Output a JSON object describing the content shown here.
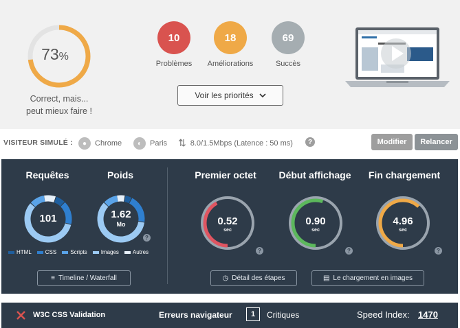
{
  "summary": {
    "score_value": "73",
    "score_unit": "%",
    "score_fraction": 0.73,
    "verdict_line1": "Correct, mais...",
    "verdict_line2": "peut mieux faire !",
    "colors": {
      "score": "#efa947",
      "problems": "#d9534f",
      "improvements": "#efa947",
      "success": "#a5adb1"
    },
    "problems_count": "10",
    "problems_label": "Problèmes",
    "improvements_count": "18",
    "improvements_label": "Améliorations",
    "success_count": "69",
    "success_label": "Succès",
    "priorities_button": "Voir les priorités"
  },
  "visitor": {
    "label": "VISITEUR SIMULÉ :",
    "browser": "Chrome",
    "location": "Paris",
    "bandwidth": "8.0/1.5Mbps (Latence : 50 ms)",
    "modify_button": "Modifier",
    "rerun_button": "Relancer"
  },
  "metrics": {
    "requests_title": "Requêtes",
    "requests_value": "101",
    "weight_title": "Poids",
    "weight_value": "1.62",
    "weight_unit": "Mo",
    "legend": [
      {
        "label": "HTML",
        "color": "#1f5f9e"
      },
      {
        "label": "CSS",
        "color": "#2f7fcf"
      },
      {
        "label": "Scripts",
        "color": "#5aa3e8"
      },
      {
        "label": "Images",
        "color": "#9ccaf3"
      },
      {
        "label": "Autres",
        "color": "#e8f1fa"
      }
    ],
    "timeline_button": "Timeline / Waterfall",
    "first_byte_title": "Premier octet",
    "first_byte_value": "0.52",
    "first_byte_fraction": 0.42,
    "start_render_title": "Début affichage",
    "start_render_value": "0.90",
    "start_render_fraction": 0.55,
    "load_title": "Fin chargement",
    "load_value": "4.96",
    "load_fraction": 0.62,
    "unit": "sec",
    "details_button": "Détail des étapes",
    "images_button": "Le chargement en images"
  },
  "footer": {
    "w3c_label": "W3C CSS Validation",
    "browser_errors_label": "Erreurs navigateur",
    "browser_errors_count": "1",
    "critical_label": "Critiques",
    "speed_index_label": "Speed Index:",
    "speed_index_value": "1470"
  }
}
